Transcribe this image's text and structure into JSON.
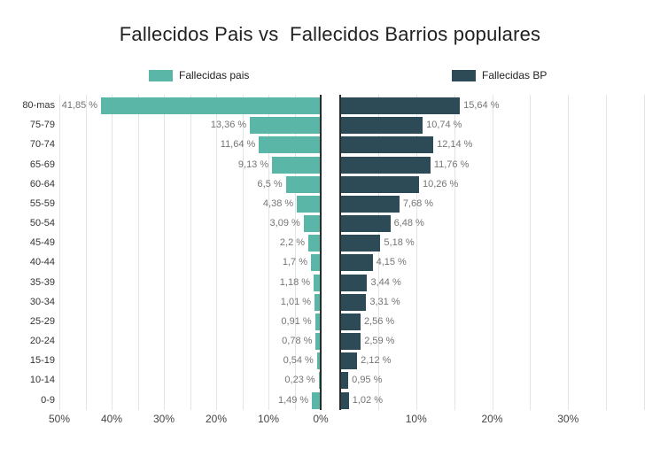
{
  "title": "Fallecidos Pais vs  Fallecidos Barrios populares",
  "legend": {
    "pais": "Fallecidas pais",
    "bp": "Fallecidas BP"
  },
  "chart_data": {
    "type": "bar",
    "orientation": "horizontal-diverging",
    "background": "#ffffff",
    "categories": [
      "80-mas",
      "75-79",
      "70-74",
      "65-69",
      "60-64",
      "55-59",
      "50-54",
      "45-49",
      "40-44",
      "35-39",
      "30-34",
      "25-29",
      "20-24",
      "15-19",
      "10-14",
      "0-9"
    ],
    "series": [
      {
        "name": "Fallecidas pais",
        "side": "left",
        "color": "#5AB7A8",
        "axis_max": 50,
        "values": [
          41.85,
          13.36,
          11.64,
          9.13,
          6.5,
          4.38,
          3.09,
          2.2,
          1.7,
          1.18,
          1.01,
          0.91,
          0.78,
          0.54,
          0.23,
          1.49
        ],
        "labels": [
          "41,85 %",
          "13,36 %",
          "11,64 %",
          "9,13 %",
          "6,5 %",
          "4,38 %",
          "3,09 %",
          "2,2 %",
          "1,7 %",
          "1,18 %",
          "1,01 %",
          "0,91 %",
          "0,78 %",
          "0,54 %",
          "0,23 %",
          "1,49 %"
        ],
        "ticks": [
          {
            "pct": 50,
            "label": "50%"
          },
          {
            "pct": 40,
            "label": "40%"
          },
          {
            "pct": 30,
            "label": "30%"
          },
          {
            "pct": 20,
            "label": "20%"
          },
          {
            "pct": 10,
            "label": "10%"
          },
          {
            "pct": 0,
            "label": "0%"
          }
        ]
      },
      {
        "name": "Fallecidas BP",
        "side": "right",
        "color": "#2D4A57",
        "axis_max": 40,
        "values": [
          15.64,
          10.74,
          12.14,
          11.76,
          10.26,
          7.68,
          6.48,
          5.18,
          4.15,
          3.44,
          3.31,
          2.56,
          2.59,
          2.12,
          0.95,
          1.02
        ],
        "labels": [
          "15,64 %",
          "10,74 %",
          "12,14 %",
          "11,76 %",
          "10,26 %",
          "7,68 %",
          "6,48 %",
          "5,18 %",
          "4,15 %",
          "3,44 %",
          "3,31 %",
          "2,56 %",
          "2,59 %",
          "2,12 %",
          "0,95 %",
          "1,02 %"
        ],
        "ticks": [
          {
            "pct": 10,
            "label": "10%"
          },
          {
            "pct": 20,
            "label": "20%"
          },
          {
            "pct": 30,
            "label": "30%"
          }
        ]
      }
    ],
    "grid": {
      "minor_step_pct": 5,
      "color": "#e4e4e4",
      "zero_line_color": "#2b2b2b"
    },
    "value_label_color": "#757575"
  }
}
